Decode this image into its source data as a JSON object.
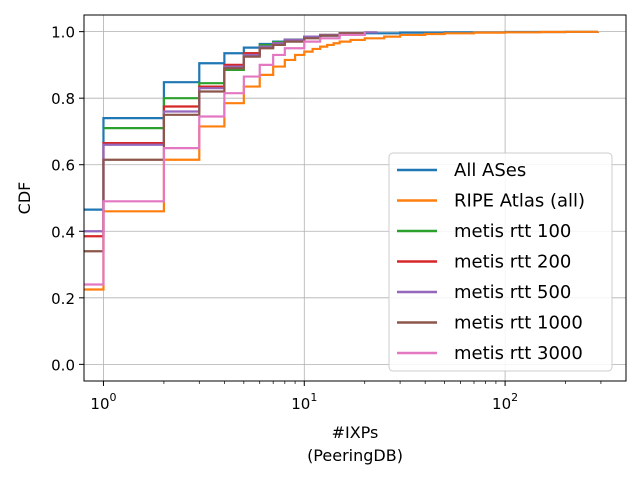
{
  "chart_data": {
    "type": "line",
    "xscale": "log",
    "xlim": [
      0.8,
      400
    ],
    "ylim": [
      -0.05,
      1.05
    ],
    "grid": true,
    "legend_position": "lower-right",
    "xlabel": "#IXPs",
    "xlabel2": "(PeeringDB)",
    "ylabel": "CDF",
    "xticks": [
      {
        "value": 1,
        "base": "10",
        "exp": "0"
      },
      {
        "value": 10,
        "base": "10",
        "exp": "1"
      },
      {
        "value": 100,
        "base": "10",
        "exp": "2"
      }
    ],
    "yticks": [
      {
        "value": 0.0,
        "label": "0.0"
      },
      {
        "value": 0.2,
        "label": "0.2"
      },
      {
        "value": 0.4,
        "label": "0.4"
      },
      {
        "value": 0.6,
        "label": "0.6"
      },
      {
        "value": 0.8,
        "label": "0.8"
      },
      {
        "value": 1.0,
        "label": "1.0"
      }
    ],
    "series": [
      {
        "name": "All ASes",
        "color": "#1f77b4",
        "x": [
          0,
          1,
          2,
          3,
          4,
          5,
          6,
          7,
          8,
          10,
          12,
          15,
          20,
          30,
          50,
          100,
          200,
          290
        ],
        "y": [
          0.465,
          0.74,
          0.848,
          0.905,
          0.935,
          0.952,
          0.963,
          0.97,
          0.976,
          0.983,
          0.988,
          0.992,
          0.995,
          0.997,
          0.998,
          0.999,
          0.9995,
          1.0
        ]
      },
      {
        "name": "RIPE Atlas (all)",
        "color": "#ff7f0e",
        "x": [
          0,
          1,
          2,
          3,
          4,
          5,
          6,
          7,
          8,
          9,
          10,
          11,
          12,
          13,
          14,
          15,
          17,
          20,
          25,
          30,
          40,
          50,
          70,
          100,
          150,
          200,
          290
        ],
        "y": [
          0.225,
          0.46,
          0.615,
          0.715,
          0.785,
          0.835,
          0.87,
          0.895,
          0.915,
          0.93,
          0.94,
          0.948,
          0.955,
          0.96,
          0.965,
          0.97,
          0.975,
          0.98,
          0.985,
          0.99,
          0.993,
          0.995,
          0.997,
          0.998,
          0.999,
          0.9995,
          1.0
        ]
      },
      {
        "name": "metis rtt 100",
        "color": "#2ca02c",
        "x": [
          1,
          2,
          3,
          4,
          5,
          6,
          7,
          8,
          10,
          12,
          15,
          20
        ],
        "y": [
          0.71,
          0.8,
          0.845,
          0.885,
          0.935,
          0.96,
          0.968,
          0.975,
          0.985,
          0.99,
          0.995,
          1.0
        ]
      },
      {
        "name": "metis rtt 200",
        "color": "#d62728",
        "x": [
          0,
          1,
          2,
          3,
          4,
          5,
          6,
          7,
          8,
          10,
          12,
          15,
          20
        ],
        "y": [
          0.385,
          0.665,
          0.775,
          0.835,
          0.9,
          0.935,
          0.955,
          0.965,
          0.975,
          0.985,
          0.99,
          0.995,
          1.0
        ]
      },
      {
        "name": "metis rtt 500",
        "color": "#9467bd",
        "x": [
          0,
          1,
          2,
          3,
          4,
          5,
          6,
          7,
          8,
          10,
          12,
          15,
          20,
          23
        ],
        "y": [
          0.4,
          0.66,
          0.76,
          0.83,
          0.895,
          0.93,
          0.955,
          0.965,
          0.975,
          0.985,
          0.99,
          0.995,
          0.998,
          1.0
        ]
      },
      {
        "name": "metis rtt 1000",
        "color": "#8c564b",
        "x": [
          0,
          1,
          2,
          3,
          4,
          5,
          6,
          7,
          8,
          10,
          12,
          15,
          20
        ],
        "y": [
          0.34,
          0.615,
          0.75,
          0.82,
          0.89,
          0.925,
          0.95,
          0.96,
          0.97,
          0.98,
          0.988,
          0.995,
          1.0
        ]
      },
      {
        "name": "metis rtt 3000",
        "color": "#e377c2",
        "x": [
          0,
          1,
          2,
          3,
          4,
          5,
          6,
          7,
          8,
          10,
          12,
          15,
          20
        ],
        "y": [
          0.24,
          0.49,
          0.65,
          0.745,
          0.815,
          0.865,
          0.9,
          0.93,
          0.95,
          0.97,
          0.98,
          0.99,
          1.0
        ]
      }
    ]
  }
}
